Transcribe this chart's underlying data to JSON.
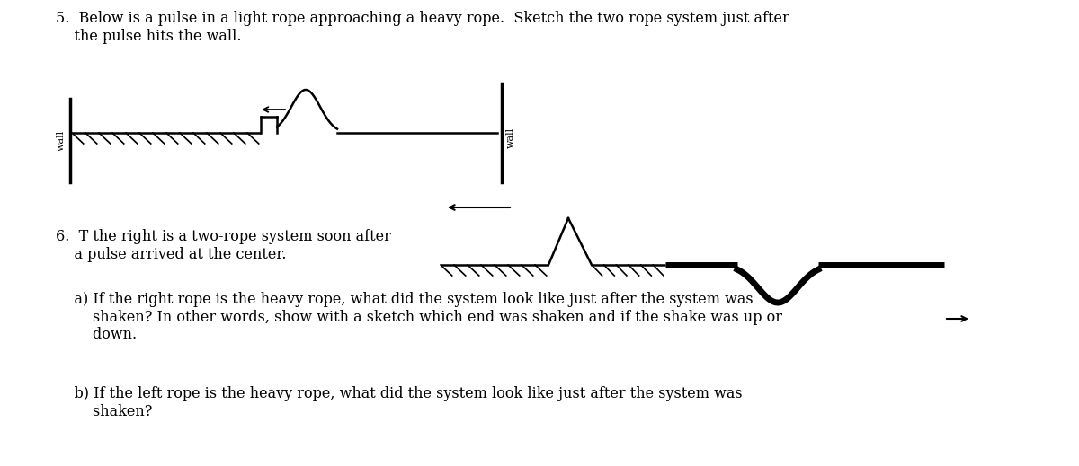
{
  "bg_color": "#ffffff",
  "text_color": "#000000",
  "title5": "5.  Below is a pulse in a light rope approaching a heavy rope.  Sketch the two rope system just after\n    the pulse hits the wall.",
  "title6": "6.  T the right is a two-rope system soon after\n    a pulse arrived at the center.",
  "question_a": "    a) If the right rope is the heavy rope, what did the system look like just after the system was\n        shaken? In other words, show with a sketch which end was shaken and if the shake was up or\n        down.",
  "question_b": "    b) If the left rope is the heavy rope, what did the system look like just after the system was\n        shaken?",
  "font_size": 11.5,
  "wall_label_size": 8
}
